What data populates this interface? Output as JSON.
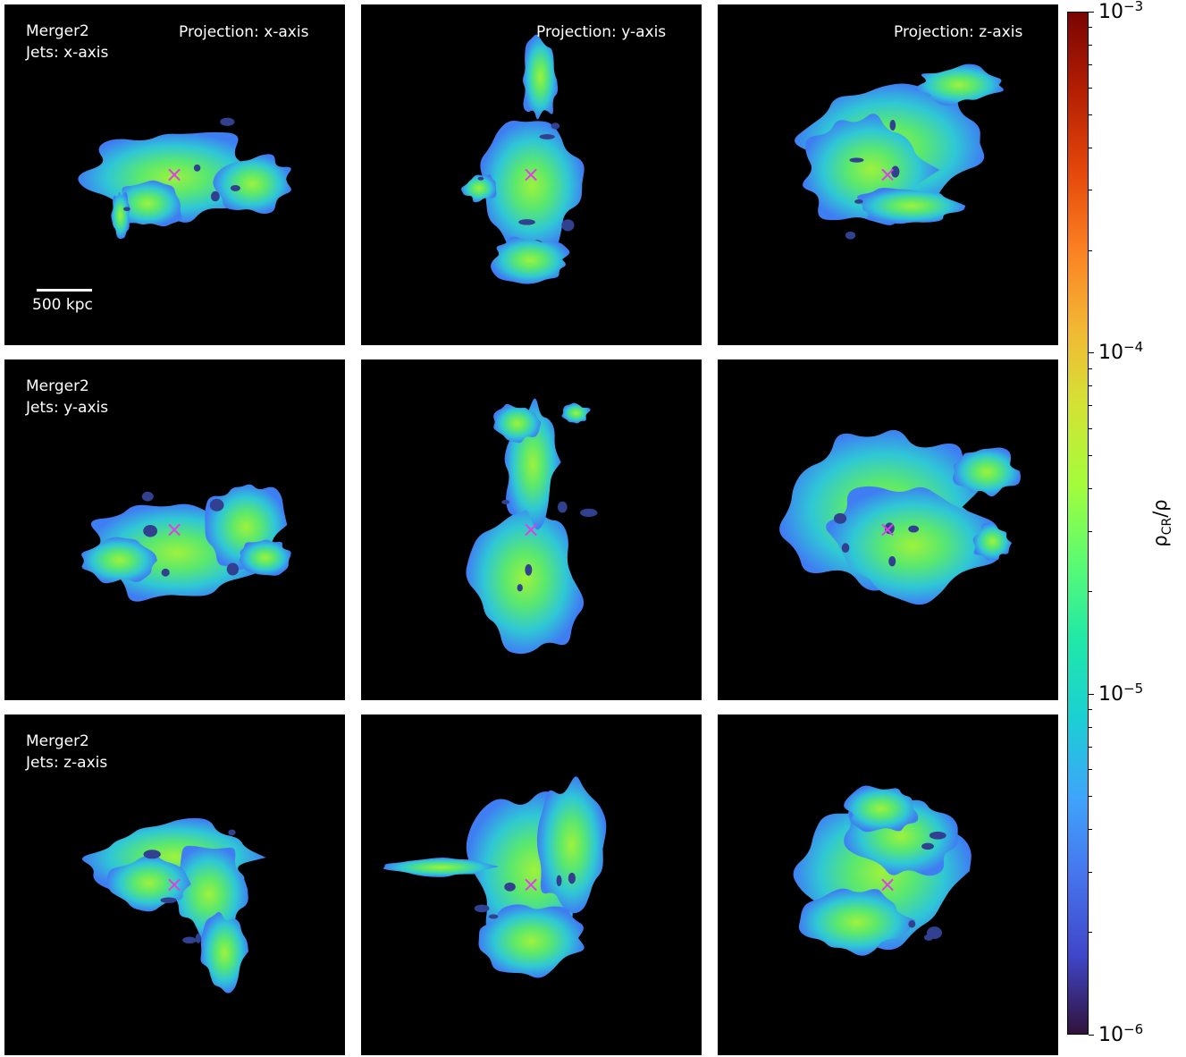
{
  "figure": {
    "simulation": "Merger2",
    "scalebar_label": "500 kpc",
    "rows": [
      {
        "jets_label": "Jets: x-axis"
      },
      {
        "jets_label": "Jets: y-axis"
      },
      {
        "jets_label": "Jets: z-axis"
      }
    ],
    "projections": [
      "Projection: x-axis",
      "Projection: y-axis",
      "Projection: z-axis"
    ],
    "marker_symbol": "×",
    "marker_color": "#e23ee8",
    "background_color": "#000000"
  },
  "chart_data": {
    "type": "heatmap",
    "layout": "3x3 grid of projection maps",
    "colorbar": {
      "label": "ρCR/ρ",
      "label_main": "ρ",
      "label_sub": "CR",
      "label_tail": "/ρ",
      "scale": "log",
      "range": [
        1e-06,
        0.001
      ],
      "colormap": "turbo",
      "ticks": [
        {
          "base": "10",
          "exp": "−3",
          "value": 0.001
        },
        {
          "base": "10",
          "exp": "−4",
          "value": 0.0001
        },
        {
          "base": "10",
          "exp": "−5",
          "value": 1e-05
        },
        {
          "base": "10",
          "exp": "−6",
          "value": 1e-06
        }
      ]
    },
    "panels": [
      {
        "row": 0,
        "col": 0,
        "jets": "x-axis",
        "projection": "x-axis"
      },
      {
        "row": 0,
        "col": 1,
        "jets": "x-axis",
        "projection": "y-axis"
      },
      {
        "row": 0,
        "col": 2,
        "jets": "x-axis",
        "projection": "z-axis"
      },
      {
        "row": 1,
        "col": 0,
        "jets": "y-axis",
        "projection": "x-axis"
      },
      {
        "row": 1,
        "col": 1,
        "jets": "y-axis",
        "projection": "y-axis"
      },
      {
        "row": 1,
        "col": 2,
        "jets": "y-axis",
        "projection": "z-axis"
      },
      {
        "row": 2,
        "col": 0,
        "jets": "z-axis",
        "projection": "x-axis"
      },
      {
        "row": 2,
        "col": 1,
        "jets": "z-axis",
        "projection": "y-axis"
      },
      {
        "row": 2,
        "col": 2,
        "jets": "z-axis",
        "projection": "z-axis"
      }
    ]
  }
}
